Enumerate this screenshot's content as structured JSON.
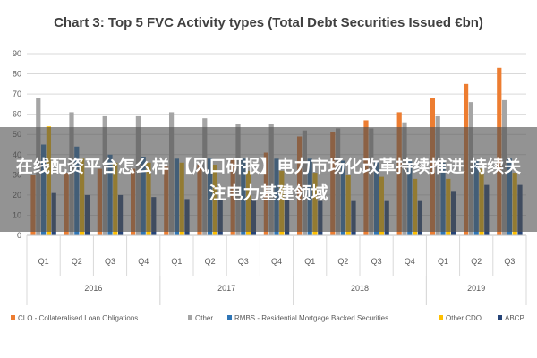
{
  "chart_data": {
    "type": "bar",
    "title": "Chart 3: Top 5 FVC Activity types (Total Debt Securities Issued €bn)",
    "xlabel": "",
    "ylabel": "",
    "ylim": [
      0,
      90
    ],
    "yticks": [
      0,
      10,
      20,
      30,
      40,
      50,
      60,
      70,
      80,
      90
    ],
    "grid": true,
    "legend_position": "bottom",
    "categories": [
      "Q1",
      "Q2",
      "Q3",
      "Q4",
      "Q1",
      "Q2",
      "Q3",
      "Q4",
      "Q1",
      "Q2",
      "Q3",
      "Q4",
      "Q1",
      "Q2",
      "Q3"
    ],
    "years": [
      {
        "label": "2016",
        "start": 0,
        "end": 3
      },
      {
        "label": "2017",
        "start": 4,
        "end": 7
      },
      {
        "label": "2018",
        "start": 8,
        "end": 11
      },
      {
        "label": "2019",
        "start": 12,
        "end": 14
      }
    ],
    "series": [
      {
        "name": "CLO - Collateralised Loan Obligations",
        "color": "#ED7D31",
        "values": [
          30,
          31,
          33,
          33,
          34,
          35,
          38,
          41,
          49,
          51,
          57,
          61,
          68,
          75,
          83
        ]
      },
      {
        "name": "Other",
        "color": "#A5A5A5",
        "values": [
          68,
          61,
          59,
          59,
          61,
          58,
          55,
          55,
          52,
          53,
          53,
          56,
          59,
          66,
          67
        ]
      },
      {
        "name": "RMBS - Residential Mortgage Backed Securities",
        "color": "#2E75B6",
        "values": [
          45,
          44,
          40,
          39,
          38,
          38,
          38,
          38,
          38,
          37,
          37,
          37,
          36,
          37,
          38
        ]
      },
      {
        "name": "Other CDO",
        "color": "#FFC000",
        "values": [
          54,
          38,
          36,
          36,
          36,
          35,
          32,
          32,
          31,
          30,
          29,
          28,
          28,
          33,
          31
        ]
      },
      {
        "name": "ABCP",
        "color": "#264478",
        "values": [
          21,
          20,
          20,
          19,
          18,
          18,
          18,
          18,
          17,
          17,
          17,
          17,
          22,
          25,
          25
        ]
      }
    ]
  },
  "overlay": {
    "text": "在线配资平台怎么样 【风口研报】电力市场化改革持续推进 持续关注电力基建领域"
  }
}
